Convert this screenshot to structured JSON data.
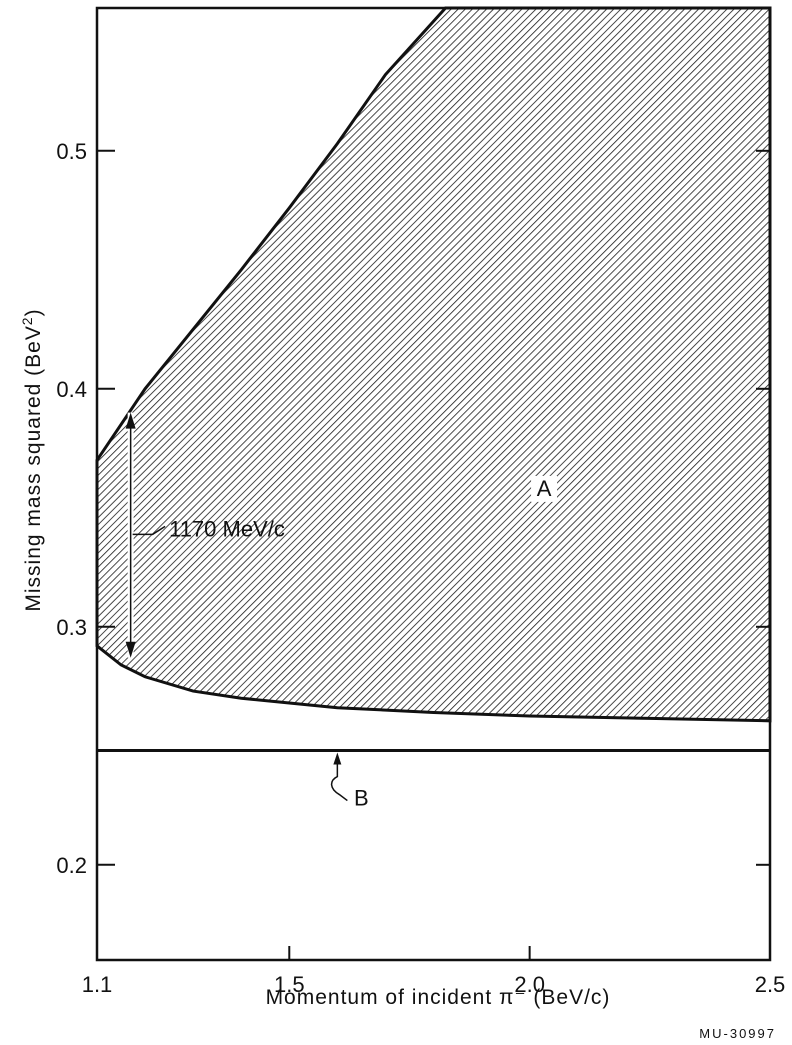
{
  "chart_data": {
    "type": "area",
    "xlabel": "Momentum of incident π⁻ (BeV/c)",
    "ylabel_main": "Missing mass squared (BeV",
    "ylabel_sup": "2",
    "ylabel_close": ")",
    "xlim": [
      1.1,
      2.5
    ],
    "ylim": [
      0.16,
      0.56
    ],
    "x_ticks": [
      {
        "value": 1.1,
        "label": "1.1"
      },
      {
        "value": 1.5,
        "label": "1.5"
      },
      {
        "value": 2.0,
        "label": "2.0"
      },
      {
        "value": 2.5,
        "label": "2.5"
      }
    ],
    "y_ticks": [
      {
        "value": 0.2,
        "label": "0.2"
      },
      {
        "value": 0.3,
        "label": "0.3"
      },
      {
        "value": 0.4,
        "label": "0.4"
      },
      {
        "value": 0.5,
        "label": "0.5"
      }
    ],
    "region_A": {
      "label": "A",
      "label_pos": {
        "x": 2.03,
        "y": 0.355
      },
      "upper": [
        [
          1.1,
          0.37
        ],
        [
          1.2,
          0.4
        ],
        [
          1.3,
          0.425
        ],
        [
          1.4,
          0.45
        ],
        [
          1.5,
          0.476
        ],
        [
          1.6,
          0.503
        ],
        [
          1.7,
          0.532
        ],
        [
          1.825,
          0.56
        ]
      ],
      "lower": [
        [
          1.1,
          0.292
        ],
        [
          1.15,
          0.284
        ],
        [
          1.2,
          0.279
        ],
        [
          1.3,
          0.273
        ],
        [
          1.4,
          0.27
        ],
        [
          1.5,
          0.268
        ],
        [
          1.6,
          0.266
        ],
        [
          1.8,
          0.264
        ],
        [
          2.0,
          0.2625
        ],
        [
          2.25,
          0.2615
        ],
        [
          2.5,
          0.2605
        ]
      ]
    },
    "line_B": {
      "label": "B",
      "y": 0.248,
      "arrow_x": 1.6,
      "label_pos": {
        "x": 1.65,
        "y": 0.225
      }
    },
    "annotation": {
      "text": "1170 MeV/c",
      "x": 1.17,
      "y_top": 0.39,
      "y_bottom": 0.287,
      "label_pos": {
        "x": 1.25,
        "y": 0.338
      }
    },
    "credit": "MU-30997"
  }
}
